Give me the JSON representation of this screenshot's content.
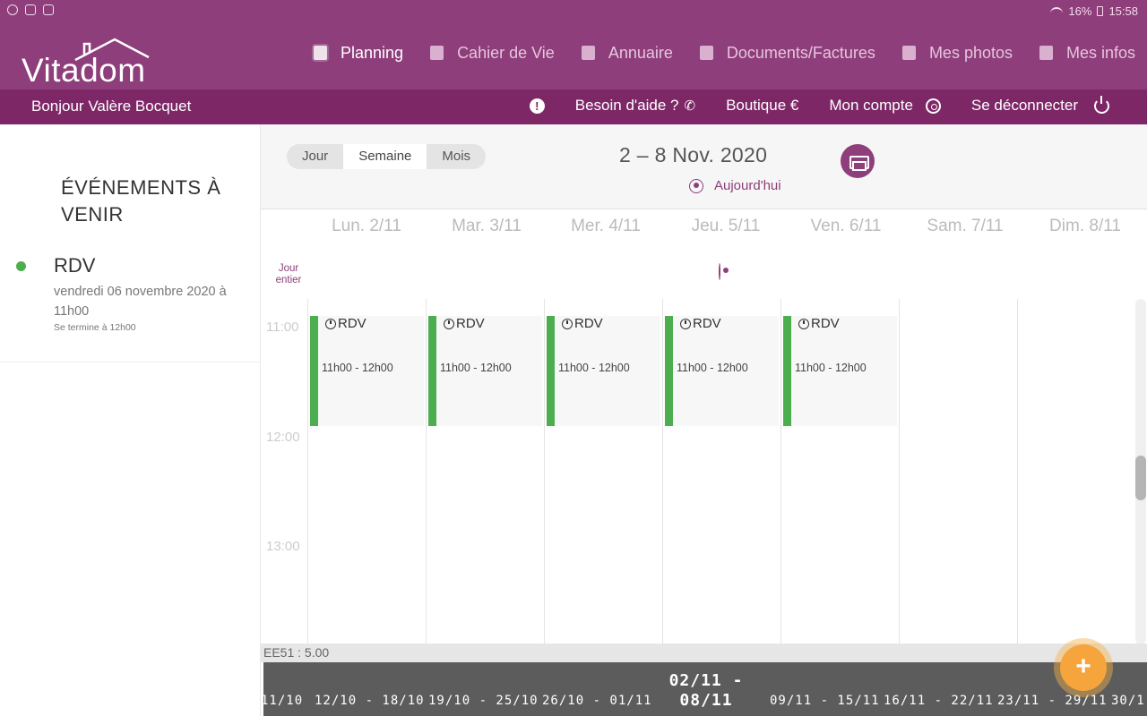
{
  "statusbar": {
    "battery": "16%",
    "time": "15:58"
  },
  "brand": {
    "name": "Vitadom",
    "accent": "#8e3e7a",
    "accent_dark": "#7d2767"
  },
  "nav": {
    "items": [
      {
        "label": "Planning",
        "icon": "calendar-icon",
        "active": true
      },
      {
        "label": "Cahier de Vie",
        "icon": "pencil-notebook-icon"
      },
      {
        "label": "Annuaire",
        "icon": "contacts-icon"
      },
      {
        "label": "Documents/Factures",
        "icon": "document-icon"
      },
      {
        "label": "Mes photos",
        "icon": "photo-icon"
      },
      {
        "label": "Mes infos",
        "icon": "user-info-icon"
      }
    ]
  },
  "subbar": {
    "greeting": "Bonjour Valère Bocquet",
    "help": "Besoin d'aide ?",
    "shop": "Boutique €",
    "account": "Mon compte",
    "logout": "Se déconnecter"
  },
  "sidebar": {
    "title": "ÉVÉNEMENTS À VENIR",
    "events": [
      {
        "title": "RDV",
        "date": "vendredi 06 novembre 2020 à 11h00",
        "end": "Se termine à 12h00",
        "color": "#4cae4f"
      }
    ]
  },
  "calendar": {
    "views": [
      "Jour",
      "Semaine",
      "Mois"
    ],
    "selected_view": "Semaine",
    "range": "2 – 8 Nov. 2020",
    "today": "Aujourd'hui",
    "allday": "Jour entier",
    "days": [
      "Lun. 2/11",
      "Mar. 3/11",
      "Mer. 4/11",
      "Jeu. 5/11",
      "Ven. 6/11",
      "Sam. 7/11",
      "Dim. 8/11"
    ],
    "hours": [
      "11:00",
      "12:00",
      "13:00"
    ],
    "events": [
      {
        "title": "RDV",
        "time": "11h00 - 12h00"
      },
      {
        "title": "RDV",
        "time": "11h00 - 12h00"
      },
      {
        "title": "RDV",
        "time": "11h00 - 12h00"
      },
      {
        "title": "RDV",
        "time": "11h00 - 12h00"
      },
      {
        "title": "RDV",
        "time": "11h00 - 12h00"
      }
    ]
  },
  "footer": {
    "version": "EE51 : 5.00",
    "weeks": [
      "11/10",
      "12/10 - 18/10",
      "19/10 - 25/10",
      "26/10 - 01/11",
      "09/11 - 15/11",
      "16/11 - 22/11",
      "23/11 - 29/11",
      "30/1"
    ],
    "current_week_line1": "02/11 -",
    "current_week_line2": "08/11",
    "add_label": "+"
  }
}
